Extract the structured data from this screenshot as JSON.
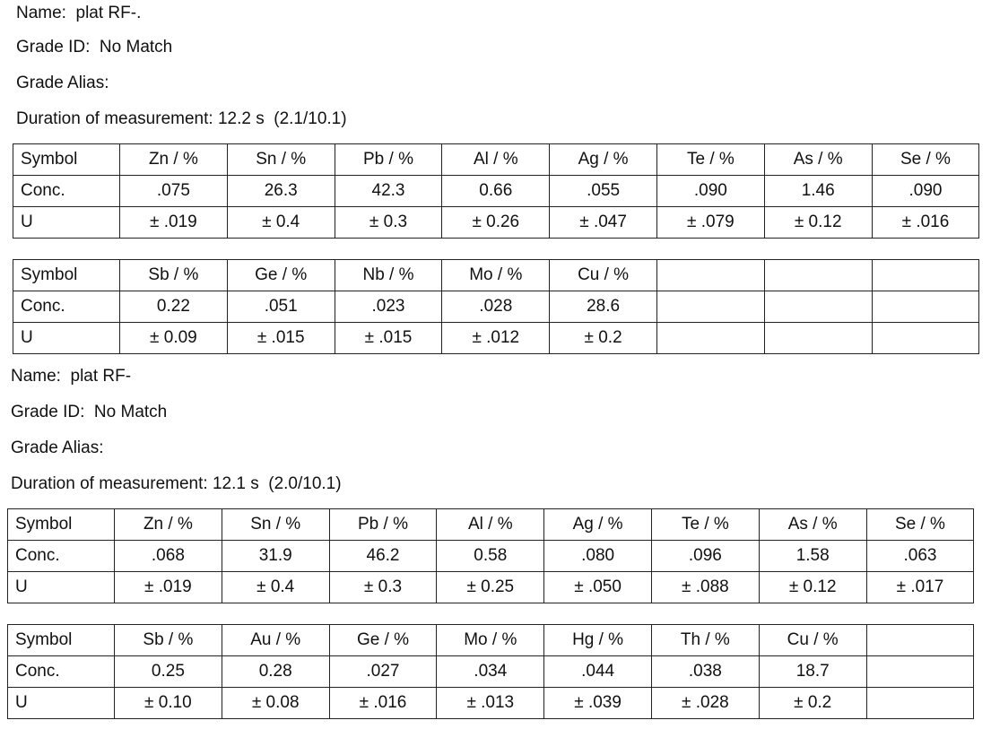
{
  "records": [
    {
      "name_line": "Name:  plat RF-.",
      "grade_id_line": "Grade ID:  No Match",
      "grade_alias_line": "Grade Alias:",
      "duration_line": "Duration of measurement: 12.2 s  (2.1/10.1)",
      "tables": [
        {
          "rows": [
            [
              "Symbol",
              "Zn / %",
              "Sn / %",
              "Pb / %",
              "Al / %",
              "Ag / %",
              "Te / %",
              "As / %",
              "Se / %"
            ],
            [
              "Conc.",
              ".075",
              "26.3",
              "42.3",
              "0.66",
              ".055",
              ".090",
              "1.46",
              ".090"
            ],
            [
              "U",
              "± .019",
              "± 0.4",
              "± 0.3",
              "± 0.26",
              "± .047",
              "± .079",
              "± 0.12",
              "± .016"
            ]
          ]
        },
        {
          "rows": [
            [
              "Symbol",
              "Sb / %",
              "Ge / %",
              "Nb / %",
              "Mo / %",
              "Cu / %",
              "",
              "",
              ""
            ],
            [
              "Conc.",
              "0.22",
              ".051",
              ".023",
              ".028",
              "28.6",
              "",
              "",
              ""
            ],
            [
              "U",
              "± 0.09",
              "± .015",
              "± .015",
              "± .012",
              "± 0.2",
              "",
              "",
              ""
            ]
          ]
        }
      ]
    },
    {
      "name_line": "Name:  plat RF-",
      "grade_id_line": "Grade ID:  No Match",
      "grade_alias_line": "Grade Alias:",
      "duration_line": "Duration of measurement: 12.1 s  (2.0/10.1)",
      "tables": [
        {
          "rows": [
            [
              "Symbol",
              "Zn / %",
              "Sn / %",
              "Pb / %",
              "Al / %",
              "Ag / %",
              "Te / %",
              "As / %",
              "Se / %"
            ],
            [
              "Conc.",
              ".068",
              "31.9",
              "46.2",
              "0.58",
              ".080",
              ".096",
              "1.58",
              ".063"
            ],
            [
              "U",
              "± .019",
              "± 0.4",
              "± 0.3",
              "± 0.25",
              "± .050",
              "± .088",
              "± 0.12",
              "± .017"
            ]
          ]
        },
        {
          "rows": [
            [
              "Symbol",
              "Sb / %",
              "Au / %",
              "Ge / %",
              "Mo / %",
              "Hg / %",
              "Th / %",
              "Cu / %",
              ""
            ],
            [
              "Conc.",
              "0.25",
              "0.28",
              ".027",
              ".034",
              ".044",
              ".038",
              "18.7",
              ""
            ],
            [
              "U",
              "± 0.10",
              "± 0.08",
              "± .016",
              "± .013",
              "± .039",
              "± .028",
              "± 0.2",
              ""
            ]
          ]
        }
      ]
    }
  ]
}
